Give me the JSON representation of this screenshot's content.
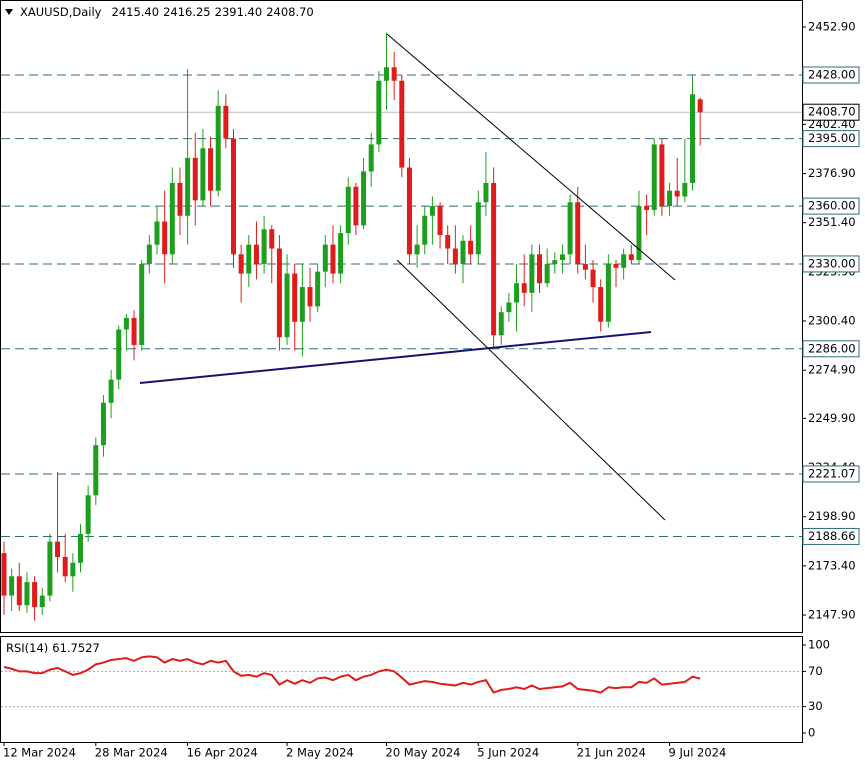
{
  "chart_data": [
    {
      "type": "candlestick",
      "header": [
        "XAUUSD,Daily",
        "2415.40",
        "2416.25",
        "2391.40",
        "2408.70"
      ],
      "categories": [
        "12 Mar 2024",
        null,
        null,
        null,
        null,
        null,
        null,
        null,
        null,
        null,
        null,
        null,
        "28 Mar 2024",
        null,
        null,
        null,
        null,
        null,
        null,
        null,
        null,
        null,
        null,
        null,
        "16 Apr 2024",
        null,
        null,
        null,
        null,
        null,
        null,
        null,
        null,
        null,
        null,
        null,
        null,
        "2 May 2024",
        null,
        null,
        null,
        null,
        null,
        null,
        null,
        null,
        null,
        null,
        null,
        null,
        "20 May 2024",
        null,
        null,
        null,
        null,
        null,
        null,
        null,
        null,
        null,
        null,
        null,
        "5 Jun 2024",
        null,
        null,
        null,
        null,
        null,
        null,
        null,
        null,
        null,
        null,
        null,
        null,
        "21 Jun 2024",
        null,
        null,
        null,
        null,
        null,
        null,
        null,
        null,
        null,
        null,
        null,
        "9 Jul 2024",
        null,
        null,
        null,
        null
      ],
      "open": [
        2180,
        2158,
        2168,
        2153,
        2165,
        2152,
        2158,
        2186,
        2178,
        2168,
        2175,
        2190,
        2210,
        2236,
        2258,
        2270,
        2296,
        2302,
        2288,
        2330,
        2340,
        2352,
        2335,
        2372,
        2355,
        2385,
        2363,
        2390,
        2368,
        2412,
        2395,
        2335,
        2325,
        2340,
        2330,
        2348,
        2338,
        2292,
        2325,
        2300,
        2318,
        2308,
        2326,
        2340,
        2325,
        2346,
        2370,
        2350,
        2378,
        2392,
        2425,
        2432,
        2425,
        2380,
        2335,
        2340,
        2355,
        2360,
        2345,
        2338,
        2330,
        2342,
        2335,
        2362,
        2372,
        2293,
        2305,
        2310,
        2320,
        2315,
        2335,
        2320,
        2330,
        2332,
        2335,
        2362,
        2330,
        2327,
        2318,
        2300,
        2330,
        2328,
        2335,
        2332,
        2360,
        2358,
        2392,
        2360,
        2368,
        2365,
        2372,
        2415.4
      ],
      "high": [
        2186,
        2172,
        2175,
        2170,
        2168,
        2162,
        2190,
        2222,
        2190,
        2180,
        2195,
        2215,
        2240,
        2262,
        2275,
        2298,
        2304,
        2306,
        2332,
        2345,
        2360,
        2368,
        2380,
        2380,
        2431,
        2398,
        2400,
        2396,
        2420,
        2418,
        2400,
        2340,
        2345,
        2352,
        2355,
        2350,
        2345,
        2335,
        2330,
        2330,
        2328,
        2330,
        2345,
        2350,
        2350,
        2375,
        2372,
        2385,
        2398,
        2430,
        2450,
        2440,
        2428,
        2385,
        2350,
        2360,
        2365,
        2362,
        2350,
        2350,
        2345,
        2350,
        2368,
        2388,
        2380,
        2308,
        2315,
        2330,
        2335,
        2340,
        2340,
        2338,
        2336,
        2340,
        2366,
        2370,
        2340,
        2332,
        2322,
        2335,
        2332,
        2338,
        2340,
        2368,
        2366,
        2395,
        2395,
        2372,
        2385,
        2395,
        2428,
        2416.25
      ],
      "low": [
        2148,
        2150,
        2150,
        2149,
        2145,
        2148,
        2155,
        2170,
        2165,
        2160,
        2170,
        2186,
        2205,
        2230,
        2250,
        2265,
        2285,
        2280,
        2285,
        2325,
        2335,
        2320,
        2330,
        2345,
        2340,
        2350,
        2360,
        2360,
        2365,
        2390,
        2328,
        2310,
        2318,
        2322,
        2325,
        2320,
        2285,
        2288,
        2285,
        2282,
        2300,
        2305,
        2318,
        2320,
        2320,
        2340,
        2345,
        2348,
        2370,
        2388,
        2410,
        2415,
        2375,
        2330,
        2328,
        2335,
        2340,
        2338,
        2330,
        2325,
        2320,
        2330,
        2330,
        2355,
        2286,
        2288,
        2300,
        2295,
        2308,
        2305,
        2315,
        2318,
        2325,
        2325,
        2330,
        2325,
        2322,
        2310,
        2295,
        2297,
        2318,
        2322,
        2330,
        2330,
        2345,
        2355,
        2355,
        2355,
        2360,
        2362,
        2368,
        2391.4
      ],
      "close": [
        2158,
        2168,
        2153,
        2165,
        2152,
        2158,
        2186,
        2178,
        2168,
        2175,
        2190,
        2210,
        2236,
        2258,
        2270,
        2296,
        2302,
        2288,
        2330,
        2340,
        2352,
        2335,
        2372,
        2355,
        2385,
        2363,
        2390,
        2368,
        2412,
        2395,
        2335,
        2325,
        2340,
        2330,
        2348,
        2338,
        2292,
        2325,
        2300,
        2318,
        2308,
        2326,
        2340,
        2325,
        2346,
        2370,
        2350,
        2378,
        2392,
        2425,
        2432,
        2425,
        2380,
        2335,
        2340,
        2355,
        2360,
        2345,
        2338,
        2330,
        2342,
        2335,
        2362,
        2372,
        2293,
        2305,
        2310,
        2320,
        2315,
        2335,
        2320,
        2330,
        2332,
        2335,
        2362,
        2330,
        2327,
        2318,
        2300,
        2330,
        2328,
        2335,
        2332,
        2360,
        2358,
        2392,
        2360,
        2368,
        2365,
        2372,
        2418,
        2408.7
      ],
      "up_color": "#1e9e1e",
      "down_color": "#e01b1b",
      "ylim": [
        2139.1,
        2466.9
      ],
      "yticks": [
        {
          "value": 2452.9,
          "label": "2452.90"
        },
        {
          "value": 2402.4,
          "label": "2402.40"
        },
        {
          "value": 2376.9,
          "label": "2376.90"
        },
        {
          "value": 2351.4,
          "label": "2351.40"
        },
        {
          "value": 2325.9,
          "label": "2325.90"
        },
        {
          "value": 2300.4,
          "label": "2300.40"
        },
        {
          "value": 2274.9,
          "label": "2274.90"
        },
        {
          "value": 2249.9,
          "label": "2249.90"
        },
        {
          "value": 2224.4,
          "label": "2224.40"
        },
        {
          "value": 2198.9,
          "label": "2198.90"
        },
        {
          "value": 2173.4,
          "label": "2173.40"
        },
        {
          "value": 2147.9,
          "label": "2147.90"
        }
      ],
      "levels": [
        {
          "value": 2428,
          "label": "2428.00"
        },
        {
          "value": 2395,
          "label": "2395.00"
        },
        {
          "value": 2360,
          "label": "2360.00"
        },
        {
          "value": 2330,
          "label": "2330.00"
        },
        {
          "value": 2286,
          "label": "2286.00"
        },
        {
          "value": 2221.07,
          "label": "2221.07"
        },
        {
          "value": 2188.66,
          "label": "2188.66"
        }
      ],
      "level_color": "#2e6e78",
      "last_price": {
        "value": 2408.7,
        "label": "2408.70"
      }
    },
    {
      "type": "line",
      "title": "RSI(14)",
      "color": "#e01b1b",
      "values": [
        75,
        73,
        70,
        70,
        68,
        68,
        72,
        74,
        70,
        66,
        68,
        72,
        78,
        80,
        83,
        84,
        85,
        82,
        86,
        87,
        86,
        80,
        84,
        82,
        84,
        80,
        78,
        82,
        80,
        82,
        70,
        65,
        66,
        64,
        68,
        66,
        55,
        60,
        56,
        60,
        57,
        62,
        63,
        60,
        64,
        66,
        60,
        64,
        66,
        70,
        72,
        70,
        63,
        55,
        57,
        59,
        58,
        56,
        55,
        54,
        57,
        55,
        58,
        60,
        46,
        49,
        50,
        52,
        50,
        54,
        50,
        51,
        52,
        53,
        57,
        50,
        49,
        48,
        46,
        52,
        51,
        52,
        52,
        58,
        57,
        62,
        55,
        56,
        57,
        58,
        64,
        61.7527
      ],
      "ylim": [
        -10.2,
        110.2
      ],
      "yticks": [
        100,
        70,
        30,
        0
      ],
      "levels": [
        70,
        30
      ]
    }
  ]
}
